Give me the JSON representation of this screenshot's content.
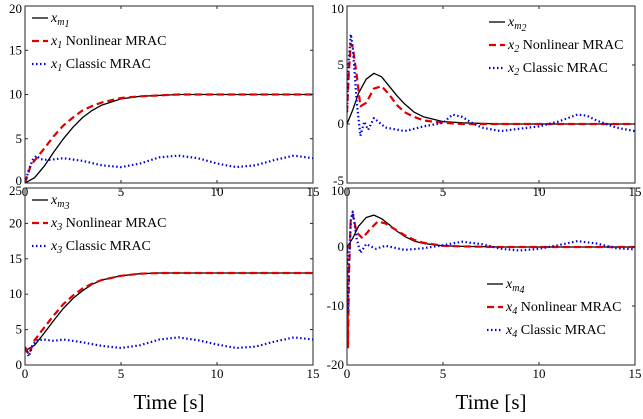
{
  "chart_data": [
    {
      "type": "line",
      "panel": "top-left",
      "xlabel": "",
      "ylabel": "",
      "xlim": [
        0,
        15
      ],
      "ylim": [
        0,
        20
      ],
      "xticks": [
        "0",
        "5",
        "10",
        "15"
      ],
      "yticks": [
        "0",
        "5",
        "10",
        "15",
        "20"
      ],
      "legend": "top-left",
      "series": [
        {
          "name": "x_m1",
          "legend_label": {
            "var": "x",
            "sub": "m",
            "subsub": "1",
            "text": ""
          },
          "color": "#000000",
          "style": "solid",
          "x": [
            0,
            0.5,
            1,
            1.5,
            2,
            2.5,
            3,
            3.5,
            4,
            5,
            6,
            7,
            8,
            10,
            12,
            15
          ],
          "y": [
            0,
            0.6,
            1.9,
            3.5,
            5.0,
            6.3,
            7.4,
            8.2,
            8.8,
            9.5,
            9.8,
            9.9,
            10,
            10,
            10,
            10
          ]
        },
        {
          "name": "x_1 Nonlinear MRAC",
          "legend_label": {
            "var": "x",
            "sub": "1",
            "text": " Nonlinear MRAC"
          },
          "color": "#e00000",
          "style": "dashed",
          "x": [
            0,
            0.3,
            0.6,
            1,
            1.5,
            2,
            2.5,
            3,
            3.5,
            4,
            5,
            6,
            7,
            8,
            10,
            12,
            15
          ],
          "y": [
            0,
            2.0,
            2.8,
            3.9,
            5.3,
            6.5,
            7.4,
            8.2,
            8.7,
            9.1,
            9.6,
            9.8,
            9.9,
            10,
            10,
            10,
            10
          ]
        },
        {
          "name": "x_1 Classic MRAC",
          "legend_label": {
            "var": "x",
            "sub": "1",
            "text": " Classic MRAC"
          },
          "color": "#0000dd",
          "style": "dotted",
          "x": [
            0,
            0.2,
            0.4,
            0.6,
            0.8,
            1.2,
            2,
            3,
            4,
            5,
            6,
            7,
            8,
            9,
            10,
            11,
            12,
            13,
            14,
            15
          ],
          "y": [
            0,
            1.5,
            2.6,
            3.1,
            2.7,
            2.6,
            2.8,
            2.5,
            2.0,
            1.8,
            2.2,
            2.9,
            3.1,
            2.8,
            2.2,
            1.8,
            2.0,
            2.6,
            3.1,
            2.8
          ]
        }
      ]
    },
    {
      "type": "line",
      "panel": "top-right",
      "xlabel": "",
      "ylabel": "",
      "xlim": [
        0,
        15
      ],
      "ylim": [
        -5,
        10
      ],
      "xticks": [
        "0",
        "5",
        "10",
        "15"
      ],
      "yticks": [
        "-5",
        "0",
        "5",
        "10"
      ],
      "legend": "top-right",
      "series": [
        {
          "name": "x_m2",
          "legend_label": {
            "var": "x",
            "sub": "m",
            "subsub": "2",
            "text": ""
          },
          "color": "#000000",
          "style": "solid",
          "x": [
            0,
            0.3,
            0.6,
            1,
            1.4,
            1.8,
            2.2,
            2.6,
            3,
            3.5,
            4,
            5,
            6,
            8,
            10,
            12,
            15
          ],
          "y": [
            0,
            1.2,
            2.6,
            3.8,
            4.3,
            4.0,
            3.2,
            2.4,
            1.7,
            1.0,
            0.6,
            0.2,
            0.1,
            0,
            0,
            0,
            0
          ]
        },
        {
          "name": "x_2 Nonlinear MRAC",
          "legend_label": {
            "var": "x",
            "sub": "2",
            "text": " Nonlinear MRAC"
          },
          "color": "#e00000",
          "style": "dashed",
          "x": [
            0,
            0.1,
            0.2,
            0.3,
            0.5,
            0.7,
            1,
            1.4,
            1.8,
            2.2,
            2.6,
            3,
            3.5,
            4,
            5,
            6,
            8,
            10,
            12,
            15
          ],
          "y": [
            1.0,
            4.5,
            6.8,
            6.5,
            4.2,
            1.5,
            1.8,
            3.0,
            3.2,
            2.5,
            1.6,
            1.0,
            0.6,
            0.3,
            0.1,
            0,
            0,
            0,
            0,
            0
          ]
        },
        {
          "name": "x_2 Classic MRAC",
          "legend_label": {
            "var": "x",
            "sub": "2",
            "text": " Classic MRAC"
          },
          "color": "#0000dd",
          "style": "dotted",
          "x": [
            0,
            0.1,
            0.2,
            0.3,
            0.5,
            0.7,
            0.9,
            1.1,
            1.4,
            2,
            3,
            4,
            5,
            5.5,
            6,
            6.5,
            7,
            8,
            9,
            10,
            11,
            12,
            12.5,
            13,
            14,
            15
          ],
          "y": [
            1.0,
            5.5,
            7.6,
            6.5,
            2.0,
            -1.0,
            0.2,
            -0.5,
            0.5,
            -0.3,
            -0.6,
            -0.2,
            0.1,
            0.8,
            0.6,
            0.1,
            -0.3,
            -0.6,
            -0.4,
            -0.2,
            0.2,
            0.8,
            0.7,
            0.3,
            -0.3,
            -0.6
          ]
        }
      ]
    },
    {
      "type": "line",
      "panel": "bottom-left",
      "xlabel": "Time [s]",
      "ylabel": "",
      "xlim": [
        0,
        15
      ],
      "ylim": [
        0,
        25
      ],
      "xticks": [
        "0",
        "5",
        "10",
        "15"
      ],
      "yticks": [
        "0",
        "5",
        "10",
        "15",
        "20",
        "25"
      ],
      "legend": "top-left",
      "series": [
        {
          "name": "x_m3",
          "legend_label": {
            "var": "x",
            "sub": "m",
            "subsub": "3",
            "text": ""
          },
          "color": "#000000",
          "style": "solid",
          "x": [
            0,
            0.5,
            1,
            1.5,
            2,
            2.5,
            3,
            3.5,
            4,
            5,
            6,
            7,
            8,
            10,
            12,
            15
          ],
          "y": [
            2.0,
            2.8,
            4.5,
            6.3,
            8.0,
            9.4,
            10.5,
            11.4,
            12.0,
            12.6,
            12.9,
            13,
            13,
            13,
            13,
            13
          ]
        },
        {
          "name": "x_3 Nonlinear MRAC",
          "legend_label": {
            "var": "x",
            "sub": "3",
            "text": " Nonlinear MRAC"
          },
          "color": "#e00000",
          "style": "dashed",
          "x": [
            0,
            0.2,
            0.5,
            1,
            1.5,
            2,
            2.5,
            3,
            3.5,
            4,
            5,
            6,
            7,
            8,
            10,
            12,
            15
          ],
          "y": [
            2.5,
            1.5,
            3.5,
            5.3,
            7.0,
            8.6,
            9.8,
            10.8,
            11.5,
            12.0,
            12.6,
            12.9,
            13,
            13,
            13,
            13,
            13
          ]
        },
        {
          "name": "x_3 Classic MRAC",
          "legend_label": {
            "var": "x",
            "sub": "3",
            "text": " Classic MRAC"
          },
          "color": "#0000dd",
          "style": "dotted",
          "x": [
            0,
            0.2,
            0.4,
            0.6,
            1,
            1.5,
            2,
            3,
            4,
            5,
            6,
            7,
            8,
            9,
            10,
            11,
            12,
            13,
            14,
            15
          ],
          "y": [
            2.5,
            1.2,
            2.8,
            3.5,
            3.6,
            3.4,
            3.6,
            3.2,
            2.7,
            2.4,
            2.8,
            3.6,
            3.9,
            3.5,
            2.9,
            2.4,
            2.6,
            3.3,
            3.9,
            3.6
          ]
        }
      ]
    },
    {
      "type": "line",
      "panel": "bottom-right",
      "xlabel": "Time [s]",
      "ylabel": "",
      "xlim": [
        0,
        15
      ],
      "ylim": [
        -20,
        10
      ],
      "xticks": [
        "0",
        "5",
        "10",
        "15"
      ],
      "yticks": [
        "-20",
        "-10",
        "0",
        "10"
      ],
      "legend": "bottom-right",
      "series": [
        {
          "name": "x_m4",
          "legend_label": {
            "var": "x",
            "sub": "m",
            "subsub": "4",
            "text": ""
          },
          "color": "#000000",
          "style": "solid",
          "x": [
            0,
            0.3,
            0.6,
            1,
            1.4,
            1.8,
            2.2,
            2.6,
            3,
            3.5,
            4,
            5,
            6,
            8,
            10,
            12,
            15
          ],
          "y": [
            0,
            1.5,
            3.5,
            5.0,
            5.4,
            4.8,
            3.8,
            2.7,
            1.8,
            1.0,
            0.6,
            0.2,
            0.1,
            0,
            0,
            0,
            0
          ]
        },
        {
          "name": "x_4 Nonlinear MRAC",
          "legend_label": {
            "var": "x",
            "sub": "4",
            "text": " Nonlinear MRAC"
          },
          "color": "#e00000",
          "style": "dashed",
          "x": [
            0,
            0.05,
            0.1,
            0.2,
            0.3,
            0.5,
            0.8,
            1.2,
            1.6,
            2,
            2.5,
            3,
            3.5,
            4,
            5,
            6,
            8,
            10,
            12,
            15
          ],
          "y": [
            0,
            -17,
            -5,
            5.0,
            5.5,
            2.5,
            1.5,
            3.0,
            4.3,
            4.0,
            3.0,
            2.0,
            1.2,
            0.7,
            0.2,
            0.1,
            0,
            0,
            0,
            0
          ]
        },
        {
          "name": "x_4 Classic MRAC",
          "legend_label": {
            "var": "x",
            "sub": "4",
            "text": " Classic MRAC"
          },
          "color": "#0000dd",
          "style": "dotted",
          "x": [
            0,
            0.05,
            0.1,
            0.2,
            0.3,
            0.5,
            0.7,
            1,
            1.5,
            2,
            3,
            4,
            5,
            6,
            7,
            8,
            9,
            10,
            11,
            12,
            13,
            14,
            15
          ],
          "y": [
            0,
            -11,
            -3,
            4.5,
            6.0,
            1.5,
            -1.0,
            0.5,
            -0.3,
            0.2,
            -0.5,
            -0.2,
            0.3,
            0.9,
            0.5,
            -0.3,
            -0.6,
            -0.3,
            0.3,
            1.0,
            0.6,
            -0.2,
            -0.4
          ]
        }
      ]
    }
  ]
}
